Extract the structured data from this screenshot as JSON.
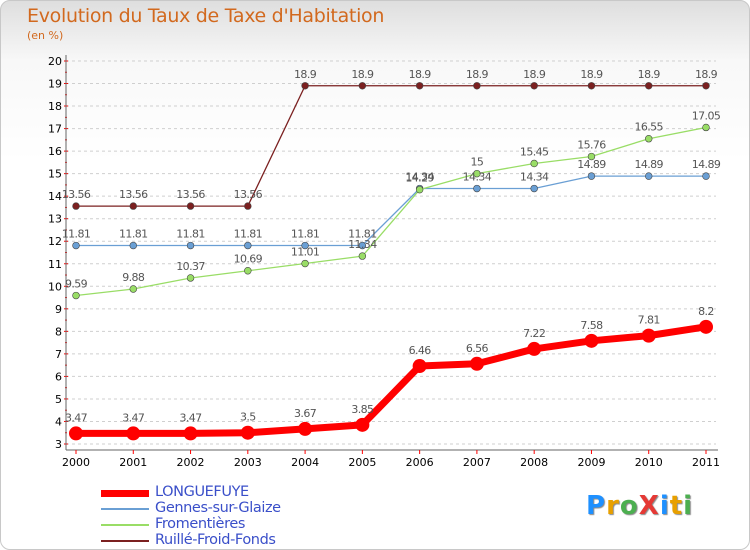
{
  "title": "Evolution du Taux de Taxe d'Habitation",
  "unit_label": "(en %)",
  "logo": {
    "text": "ProXiti",
    "colors": [
      "#1e90ff",
      "#e8a000",
      "#4caf50",
      "#e53935",
      "#1e90ff",
      "#e8a000",
      "#4caf50"
    ]
  },
  "chart_data": {
    "type": "line",
    "title": "Evolution du Taux de Taxe d'Habitation",
    "ylabel": "(en %)",
    "xlabel": "",
    "x": [
      "2000",
      "2001",
      "2002",
      "2003",
      "2004",
      "2005",
      "2006",
      "2007",
      "2008",
      "2009",
      "2010",
      "2011"
    ],
    "ylim": [
      3,
      20
    ],
    "yticks": [
      3,
      4,
      5,
      6,
      7,
      8,
      9,
      10,
      11,
      12,
      13,
      14,
      15,
      16,
      17,
      18,
      19,
      20
    ],
    "grid": "horizontal-dashed",
    "legend_position": "bottom-left",
    "series": [
      {
        "name": "LONGUEFUYE",
        "color": "#ff0000",
        "style": "thick",
        "values": [
          3.47,
          3.47,
          3.47,
          3.5,
          3.67,
          3.85,
          6.46,
          6.56,
          7.22,
          7.58,
          7.81,
          8.2
        ],
        "labels": [
          "3.47",
          "3.47",
          "3.47",
          "3.5",
          "3.67",
          "3.85",
          "6.46",
          "6.56",
          "7.22",
          "7.58",
          "7.81",
          "8.2"
        ]
      },
      {
        "name": "Gennes-sur-Glaize",
        "color": "#6a9fd4",
        "style": "thin",
        "values": [
          11.81,
          11.81,
          11.81,
          11.81,
          11.81,
          11.81,
          14.34,
          14.34,
          14.34,
          14.89,
          14.89,
          14.89
        ],
        "labels": [
          "11.81",
          "11.81",
          "11.81",
          "11.81",
          "11.81",
          "11.81",
          "14.34",
          "14.34",
          "14.34",
          "14.89",
          "14.89",
          "14.89"
        ]
      },
      {
        "name": "Fromentières",
        "color": "#99dd66",
        "style": "thin",
        "values": [
          9.59,
          9.88,
          10.37,
          10.69,
          11.01,
          11.34,
          14.29,
          15,
          15.45,
          15.76,
          16.55,
          17.05
        ],
        "labels": [
          "9.59",
          "9.88",
          "10.37",
          "10.69",
          "11.01",
          "11.34",
          "14.29",
          "15",
          "15.45",
          "15.76",
          "16.55",
          "17.05"
        ]
      },
      {
        "name": "Ruillé-Froid-Fonds",
        "color": "#7b2020",
        "style": "thin",
        "values": [
          13.56,
          13.56,
          13.56,
          13.56,
          18.9,
          18.9,
          18.9,
          18.9,
          18.9,
          18.9,
          18.9,
          18.9
        ],
        "labels": [
          "13.56",
          "13.56",
          "13.56",
          "13.56",
          "18.9",
          "18.9",
          "18.9",
          "18.9",
          "18.9",
          "18.9",
          "18.9",
          "18.9"
        ]
      }
    ]
  }
}
